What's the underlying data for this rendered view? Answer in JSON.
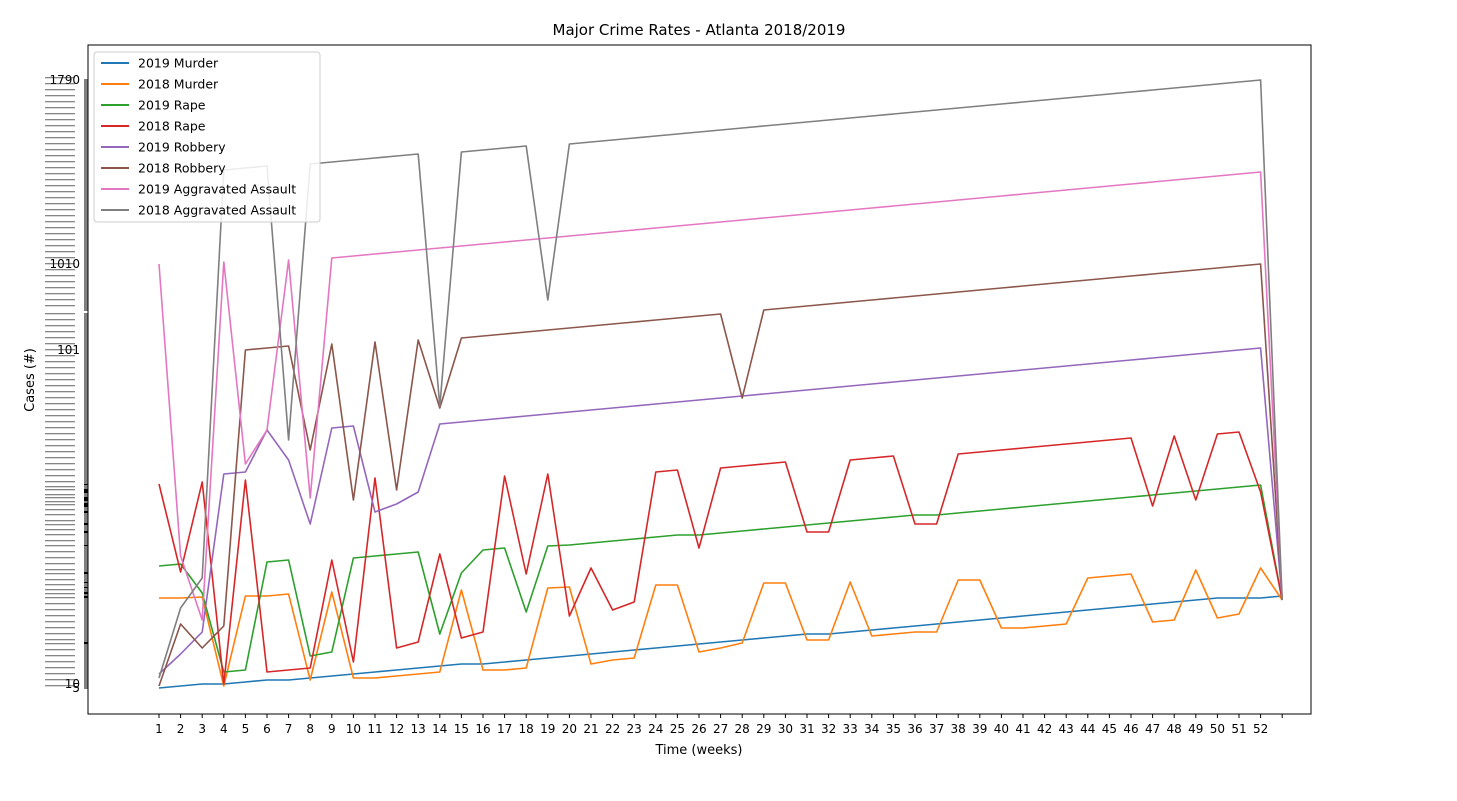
{
  "chart_data": {
    "type": "line",
    "title": "Major Crime Rates - Atlanta 2018/2019",
    "xlabel": "Time (weeks)",
    "ylabel": "Cases (#)",
    "x_ticks": [
      "1",
      "2",
      "3",
      "4",
      "5",
      "6",
      "7",
      "8",
      "9",
      "10",
      "11",
      "12",
      "13",
      "14",
      "15",
      "16",
      "17",
      "18",
      "19",
      "20",
      "21",
      "22",
      "23",
      "24",
      "25",
      "26",
      "27",
      "28",
      "29",
      "30",
      "31",
      "32",
      "33",
      "34",
      "35",
      "36",
      "37",
      "38",
      "39",
      "40",
      "41",
      "42",
      "43",
      "44",
      "45",
      "46",
      "47",
      "48",
      "49",
      "50",
      "51",
      "52",
      ""
    ],
    "y_tick_labels": [
      "5",
      "10",
      "101",
      "1010",
      "1790"
    ],
    "legend_position": "top-left",
    "grid": false,
    "series": [
      {
        "name": "2019 Murder",
        "color": "#1f77b4",
        "levels": [
          0,
          2,
          4,
          4,
          6,
          8,
          8,
          10,
          12,
          14,
          16,
          18,
          20,
          22,
          24,
          24,
          26,
          28,
          30,
          32,
          34,
          36,
          38,
          40,
          42,
          44,
          46,
          48,
          50,
          52,
          54,
          54,
          56,
          58,
          60,
          62,
          64,
          66,
          68,
          70,
          72,
          74,
          76,
          78,
          80,
          82,
          84,
          86,
          88,
          90,
          90,
          90,
          92
        ]
      },
      {
        "name": "2018 Murder",
        "color": "#ff7f0e",
        "levels": [
          90,
          90,
          91,
          2,
          92,
          92,
          94,
          8,
          96,
          10,
          10,
          12,
          14,
          16,
          98,
          18,
          18,
          20,
          100,
          101,
          24,
          28,
          30,
          103,
          103,
          36,
          40,
          45,
          105,
          105,
          48,
          48,
          106,
          52,
          54,
          56,
          56,
          108,
          108,
          60,
          60,
          62,
          64,
          110,
          112,
          114,
          66,
          68,
          118,
          70,
          74,
          120,
          88
        ]
      },
      {
        "name": "2019 Rape",
        "color": "#2ca02c",
        "levels": [
          122,
          124,
          95,
          16,
          18,
          126,
          128,
          32,
          36,
          130,
          132,
          134,
          136,
          54,
          115,
          138,
          140,
          76,
          142,
          143,
          145,
          147,
          149,
          151,
          153,
          153,
          155,
          157,
          159,
          161,
          163,
          165,
          167,
          169,
          171,
          173,
          173,
          175,
          177,
          179,
          181,
          183,
          185,
          187,
          189,
          191,
          193,
          195,
          197,
          199,
          201,
          203,
          88
        ]
      },
      {
        "name": "2018 Rape",
        "color": "#d62728",
        "levels": [
          204,
          116,
          206,
          4,
          208,
          16,
          18,
          20,
          128,
          26,
          210,
          40,
          46,
          134,
          50,
          56,
          212,
          114,
          214,
          72,
          120,
          78,
          86,
          216,
          218,
          140,
          220,
          222,
          224,
          226,
          156,
          156,
          228,
          230,
          232,
          164,
          164,
          234,
          236,
          238,
          240,
          242,
          244,
          246,
          248,
          250,
          182,
          252,
          188,
          254,
          256,
          196,
          88
        ]
      },
      {
        "name": "2019 Robbery",
        "color": "#9467bd",
        "levels": [
          14,
          34,
          56,
          214,
          216,
          258,
          228,
          164,
          260,
          262,
          176,
          184,
          196,
          264,
          266,
          268,
          270,
          272,
          274,
          276,
          278,
          280,
          282,
          284,
          286,
          288,
          290,
          292,
          294,
          296,
          298,
          300,
          302,
          304,
          306,
          308,
          310,
          312,
          314,
          316,
          318,
          320,
          322,
          324,
          326,
          328,
          330,
          332,
          334,
          336,
          338,
          340,
          88
        ]
      },
      {
        "name": "2018 Robbery",
        "color": "#8c564b",
        "levels": [
          2,
          64,
          40,
          62,
          338,
          340,
          342,
          238,
          344,
          188,
          346,
          198,
          348,
          280,
          350,
          352,
          354,
          356,
          358,
          360,
          362,
          364,
          366,
          368,
          370,
          372,
          374,
          290,
          378,
          380,
          382,
          384,
          386,
          388,
          390,
          392,
          394,
          396,
          398,
          400,
          402,
          404,
          406,
          408,
          410,
          412,
          414,
          416,
          418,
          420,
          422,
          424,
          88
        ]
      },
      {
        "name": "2019 Aggravated Assault",
        "color": "#e377c2",
        "levels": [
          424,
          132,
          68,
          426,
          224,
          258,
          428,
          190,
          430,
          432,
          434,
          436,
          438,
          440,
          442,
          444,
          446,
          448,
          450,
          452,
          454,
          456,
          458,
          460,
          462,
          464,
          466,
          468,
          470,
          472,
          474,
          476,
          478,
          480,
          482,
          484,
          486,
          488,
          490,
          492,
          494,
          496,
          498,
          500,
          502,
          504,
          506,
          508,
          510,
          512,
          514,
          516,
          88
        ]
      },
      {
        "name": "2018 Aggravated Assault",
        "color": "#7f7f7f",
        "levels": [
          10,
          80,
          110,
          518,
          520,
          522,
          248,
          524,
          526,
          528,
          530,
          532,
          534,
          282,
          536,
          538,
          540,
          542,
          388,
          544,
          546,
          548,
          550,
          552,
          554,
          556,
          558,
          560,
          562,
          564,
          566,
          568,
          570,
          572,
          574,
          576,
          578,
          580,
          582,
          584,
          586,
          588,
          590,
          592,
          594,
          596,
          598,
          600,
          602,
          604,
          606,
          608,
          88
        ]
      }
    ]
  }
}
